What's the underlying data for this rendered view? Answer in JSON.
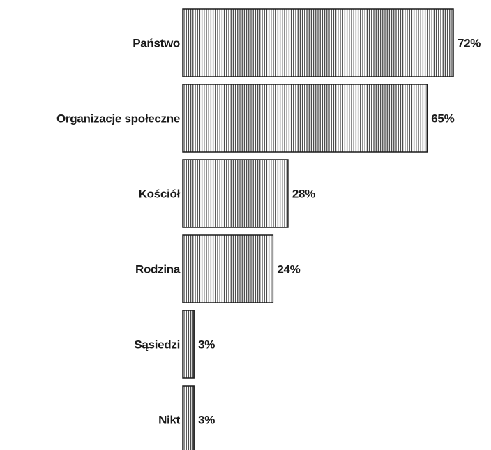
{
  "chart_data": {
    "type": "bar",
    "orientation": "horizontal",
    "categories": [
      "Państwo",
      "Organizacje społeczne",
      "Kościół",
      "Rodzina",
      "Sąsiedzi",
      "Nikt"
    ],
    "values": [
      72,
      65,
      28,
      24,
      3,
      3
    ],
    "value_labels": [
      "72%",
      "65%",
      "28%",
      "24%",
      "3%",
      "3%"
    ],
    "unit": "%",
    "title": "",
    "xlabel": "",
    "ylabel": "",
    "xlim": [
      0,
      72
    ],
    "grid": false,
    "legend": "none",
    "bar_fill": "vertical-hatch",
    "colors": {
      "bar_stroke": "#1a1a1a",
      "bar_fill": "#ffffff",
      "text": "#1a1a1a"
    }
  }
}
